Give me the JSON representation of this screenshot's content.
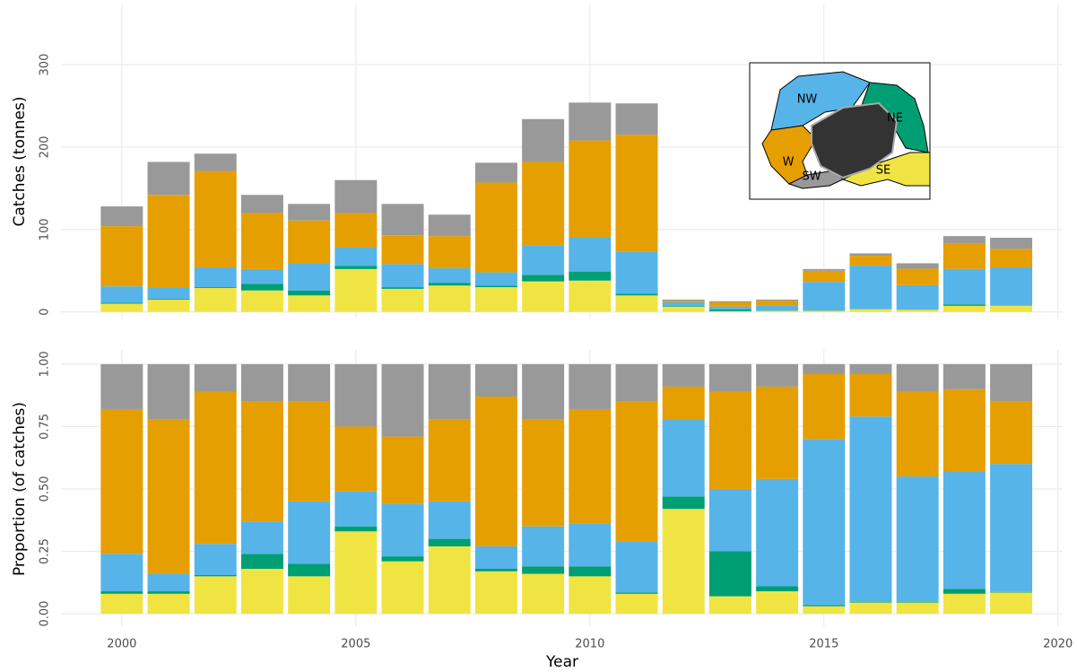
{
  "chart_data": [
    {
      "type": "bar",
      "stacked": true,
      "y_label": "Catches (tonnes)",
      "x": [
        2000,
        2001,
        2002,
        2003,
        2004,
        2005,
        2006,
        2007,
        2008,
        2009,
        2010,
        2011,
        2012,
        2013,
        2014,
        2015,
        2016,
        2017,
        2018,
        2019
      ],
      "xlim": [
        1998.7,
        2020.1
      ],
      "xticks": [
        2000,
        2005,
        2010,
        2015,
        2020
      ],
      "ylim": [
        -8,
        373
      ],
      "yticks": [
        0,
        100,
        200,
        300
      ],
      "grid": true,
      "series": [
        {
          "name": "SE",
          "color": "#f0e442",
          "values": [
            10,
            15,
            29,
            26,
            20,
            52,
            28,
            32,
            30,
            37,
            38,
            20,
            6.3,
            0.9,
            1.3,
            1.5,
            3.2,
            2.7,
            7.4,
            7.6
          ]
        },
        {
          "name": "NE",
          "color": "#009e73",
          "values": [
            1,
            1,
            1,
            8,
            6,
            4,
            2,
            3,
            2,
            8,
            11,
            2,
            0.8,
            2.3,
            0.3,
            0.3,
            0.1,
            0.2,
            1.8,
            0.2
          ]
        },
        {
          "name": "NW",
          "color": "#56b4e9",
          "values": [
            20,
            13,
            24,
            18,
            33,
            22,
            28,
            18,
            16,
            36,
            42,
            51,
            4.6,
            3.3,
            6.5,
            34.6,
            52.8,
            29.6,
            43,
            46.2
          ]
        },
        {
          "name": "W",
          "color": "#e69f00",
          "values": [
            73,
            113,
            117,
            68,
            52,
            42,
            35,
            39,
            109,
            101,
            117,
            142,
            2,
            5.1,
            5.6,
            13.5,
            12,
            20,
            30.4,
            22.5
          ]
        },
        {
          "name": "SW",
          "color": "#999999",
          "values": [
            24,
            40,
            21,
            22,
            20,
            40,
            38,
            26,
            24,
            52,
            46,
            38,
            1.3,
            1.4,
            1.3,
            2.1,
            2.9,
            6.5,
            9.4,
            13.5
          ]
        }
      ]
    },
    {
      "type": "bar",
      "stacked": true,
      "y_label": "Proportion (of catches)",
      "x_label": "Year",
      "x": [
        2000,
        2001,
        2002,
        2003,
        2004,
        2005,
        2006,
        2007,
        2008,
        2009,
        2010,
        2011,
        2012,
        2013,
        2014,
        2015,
        2016,
        2017,
        2018,
        2019
      ],
      "xlim": [
        1998.7,
        2020.1
      ],
      "xticks": [
        2000,
        2005,
        2010,
        2015,
        2020
      ],
      "ylim": [
        -0.05,
        1.057
      ],
      "yticks": [
        {
          "value": 0,
          "label": "0.00"
        },
        {
          "value": 0.25,
          "label": "0.25"
        },
        {
          "value": 0.5,
          "label": "0.50"
        },
        {
          "value": 0.75,
          "label": "0.75"
        },
        {
          "value": 1,
          "label": "1.00"
        }
      ],
      "grid": true,
      "series": [
        {
          "name": "SE",
          "color": "#f0e442",
          "values": [
            0.08,
            0.08,
            0.15,
            0.18,
            0.15,
            0.33,
            0.21,
            0.27,
            0.17,
            0.16,
            0.15,
            0.08,
            0.42,
            0.07,
            0.09,
            0.03,
            0.045,
            0.045,
            0.08,
            0.085
          ]
        },
        {
          "name": "NE",
          "color": "#009e73",
          "values": [
            0.01,
            0.01,
            0.005,
            0.06,
            0.05,
            0.02,
            0.02,
            0.03,
            0.01,
            0.03,
            0.04,
            0.005,
            0.05,
            0.18,
            0.02,
            0.005,
            0.002,
            0.003,
            0.02,
            0.002
          ]
        },
        {
          "name": "NW",
          "color": "#56b4e9",
          "values": [
            0.15,
            0.07,
            0.125,
            0.13,
            0.25,
            0.14,
            0.21,
            0.15,
            0.09,
            0.16,
            0.17,
            0.205,
            0.31,
            0.25,
            0.43,
            0.665,
            0.743,
            0.502,
            0.47,
            0.513
          ]
        },
        {
          "name": "W",
          "color": "#e69f00",
          "values": [
            0.58,
            0.62,
            0.61,
            0.48,
            0.4,
            0.26,
            0.27,
            0.33,
            0.6,
            0.43,
            0.46,
            0.56,
            0.13,
            0.39,
            0.37,
            0.26,
            0.17,
            0.34,
            0.33,
            0.25
          ]
        },
        {
          "name": "SW",
          "color": "#999999",
          "values": [
            0.18,
            0.22,
            0.11,
            0.15,
            0.15,
            0.25,
            0.29,
            0.22,
            0.13,
            0.22,
            0.18,
            0.15,
            0.09,
            0.11,
            0.09,
            0.04,
            0.04,
            0.11,
            0.1,
            0.15
          ]
        }
      ]
    }
  ]
}
